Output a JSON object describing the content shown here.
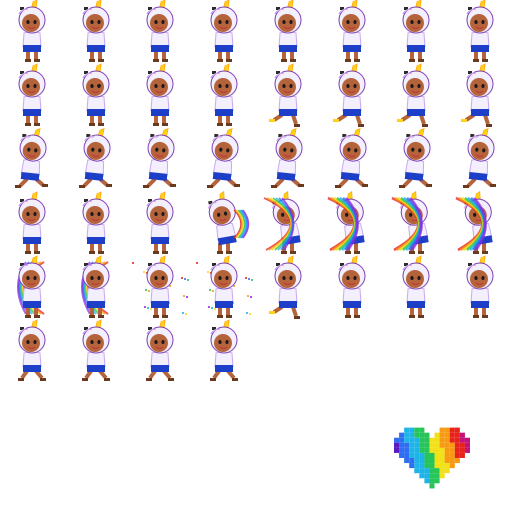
{
  "sheet": {
    "background": "#ffffff",
    "columns": 8,
    "rows": 6,
    "frame_count": 44
  },
  "palette": {
    "skin": "#b5633a",
    "skin_shadow": "#8a4526",
    "hood": "#f4efff",
    "hood_shade": "#c9a8ef",
    "outline": "#7a3fb0",
    "horn": "#ffd21a",
    "horn_tip": "#ffa800",
    "shorts": "#1d3fc8",
    "shoe": "#6b3a1e",
    "eye": "#1a1a1a",
    "ears": "#2a2a2a",
    "mouth": "#c43a3a"
  },
  "frames": [
    {
      "pose": "idle",
      "effect": "none"
    },
    {
      "pose": "idle",
      "effect": "none"
    },
    {
      "pose": "idle",
      "effect": "none"
    },
    {
      "pose": "idle",
      "effect": "none"
    },
    {
      "pose": "idle",
      "effect": "none"
    },
    {
      "pose": "idle",
      "effect": "none"
    },
    {
      "pose": "idle",
      "effect": "none"
    },
    {
      "pose": "idle",
      "effect": "none"
    },
    {
      "pose": "idle",
      "effect": "none"
    },
    {
      "pose": "wink",
      "effect": "none"
    },
    {
      "pose": "idle",
      "effect": "none"
    },
    {
      "pose": "idle",
      "effect": "none"
    },
    {
      "pose": "kick",
      "effect": "none"
    },
    {
      "pose": "kick",
      "effect": "none"
    },
    {
      "pose": "kick",
      "effect": "none"
    },
    {
      "pose": "kick",
      "effect": "none"
    },
    {
      "pose": "run",
      "effect": "none"
    },
    {
      "pose": "run",
      "effect": "none"
    },
    {
      "pose": "run",
      "effect": "none"
    },
    {
      "pose": "run",
      "effect": "none"
    },
    {
      "pose": "run",
      "effect": "none"
    },
    {
      "pose": "run",
      "effect": "none"
    },
    {
      "pose": "run",
      "effect": "none"
    },
    {
      "pose": "run",
      "effect": "none"
    },
    {
      "pose": "idle",
      "effect": "none"
    },
    {
      "pose": "idle",
      "effect": "none"
    },
    {
      "pose": "idle",
      "effect": "none"
    },
    {
      "pose": "lean",
      "effect": "rainbow-small"
    },
    {
      "pose": "lean",
      "effect": "rainbow-medium"
    },
    {
      "pose": "lean",
      "effect": "rainbow-large"
    },
    {
      "pose": "lean",
      "effect": "rainbow-large"
    },
    {
      "pose": "lean",
      "effect": "rainbow-large"
    },
    {
      "pose": "idle",
      "effect": "rainbow-burst"
    },
    {
      "pose": "idle",
      "effect": "rainbow-burst"
    },
    {
      "pose": "idle",
      "effect": "sparkle"
    },
    {
      "pose": "idle",
      "effect": "sparkle"
    },
    {
      "pose": "kick",
      "effect": "none"
    },
    {
      "pose": "idle",
      "effect": "none"
    },
    {
      "pose": "idle",
      "effect": "none"
    },
    {
      "pose": "idle",
      "effect": "none"
    },
    {
      "pose": "sit",
      "effect": "none"
    },
    {
      "pose": "sit",
      "effect": "none"
    },
    {
      "pose": "sit",
      "effect": "none"
    },
    {
      "pose": "sit",
      "effect": "none"
    }
  ],
  "heart": {
    "icon": "rainbow-pixel-heart",
    "colors": [
      "#5a1cc0",
      "#2f6ef0",
      "#1fb4e8",
      "#27c45a",
      "#f2e018",
      "#f79a12",
      "#e8241a",
      "#c4127a"
    ]
  }
}
